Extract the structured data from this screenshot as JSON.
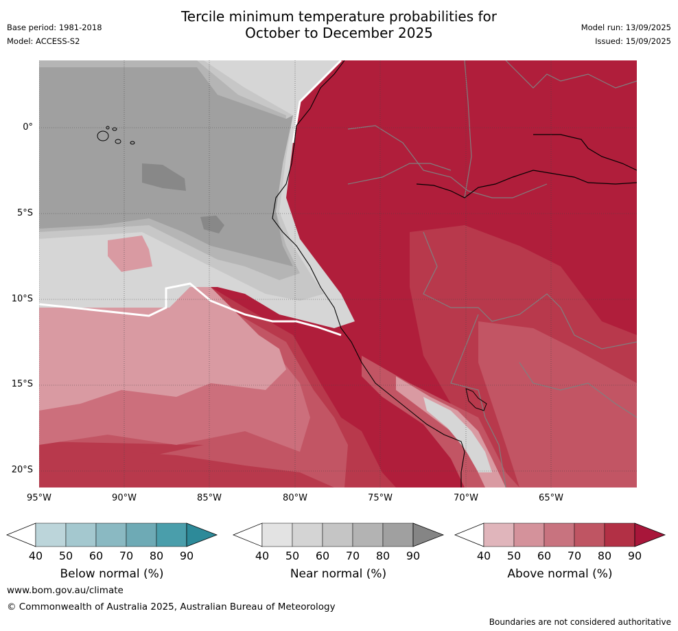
{
  "title": {
    "line1": "Tercile minimum temperature probabilities for",
    "line2": "October to December 2025"
  },
  "meta_left": {
    "base_period": "Base period: 1981-2018",
    "model": "Model: ACCESS-S2"
  },
  "meta_right": {
    "model_run": "Model run: 13/09/2025",
    "issued": "Issued: 15/09/2025"
  },
  "map": {
    "lat_ticks": [
      "0°",
      "5°S",
      "10°S",
      "15°S",
      "20°S"
    ],
    "lon_ticks": [
      "95°W",
      "90°W",
      "85°W",
      "80°W",
      "75°W",
      "70°W",
      "65°W"
    ],
    "colors": {
      "ocean_grey_90": "#a0a0a0",
      "grey_80": "#b5b5b5",
      "grey_70": "#c7c7c7",
      "grey_60": "#d6d6d6",
      "pink_50": "#d99aa2",
      "red_60": "#cc6f7c",
      "red_70": "#c25564",
      "red_80": "#b8394c",
      "red_90": "#b01e3b",
      "dark_grey_blob": "#888888",
      "border": "#808080",
      "coast": "#000000"
    }
  },
  "colorbars": [
    {
      "name": "Below normal (%)",
      "ticks": [
        "40",
        "50",
        "60",
        "70",
        "80",
        "90"
      ],
      "colors": [
        "#ffffff",
        "#bcd5da",
        "#a4c8cf",
        "#8ab9c2",
        "#6eaab5",
        "#4a9eab",
        "#2d8a99"
      ]
    },
    {
      "name": "Near normal (%)",
      "ticks": [
        "40",
        "50",
        "60",
        "70",
        "80",
        "90"
      ],
      "colors": [
        "#ffffff",
        "#e3e3e3",
        "#d4d4d4",
        "#c5c5c5",
        "#b3b3b3",
        "#a0a0a0",
        "#858585"
      ]
    },
    {
      "name": "Above normal (%)",
      "ticks": [
        "40",
        "50",
        "60",
        "70",
        "80",
        "90"
      ],
      "colors": [
        "#ffffff",
        "#e0b5bb",
        "#d4929b",
        "#c8737f",
        "#bf5563",
        "#b23045",
        "#a8163a"
      ]
    }
  ],
  "footer": {
    "website": "www.bom.gov.au/climate",
    "copyright": "© Commonwealth of Australia 2025, Australian Bureau of Meteorology",
    "disclaimer": "Boundaries are not considered authoritative"
  }
}
